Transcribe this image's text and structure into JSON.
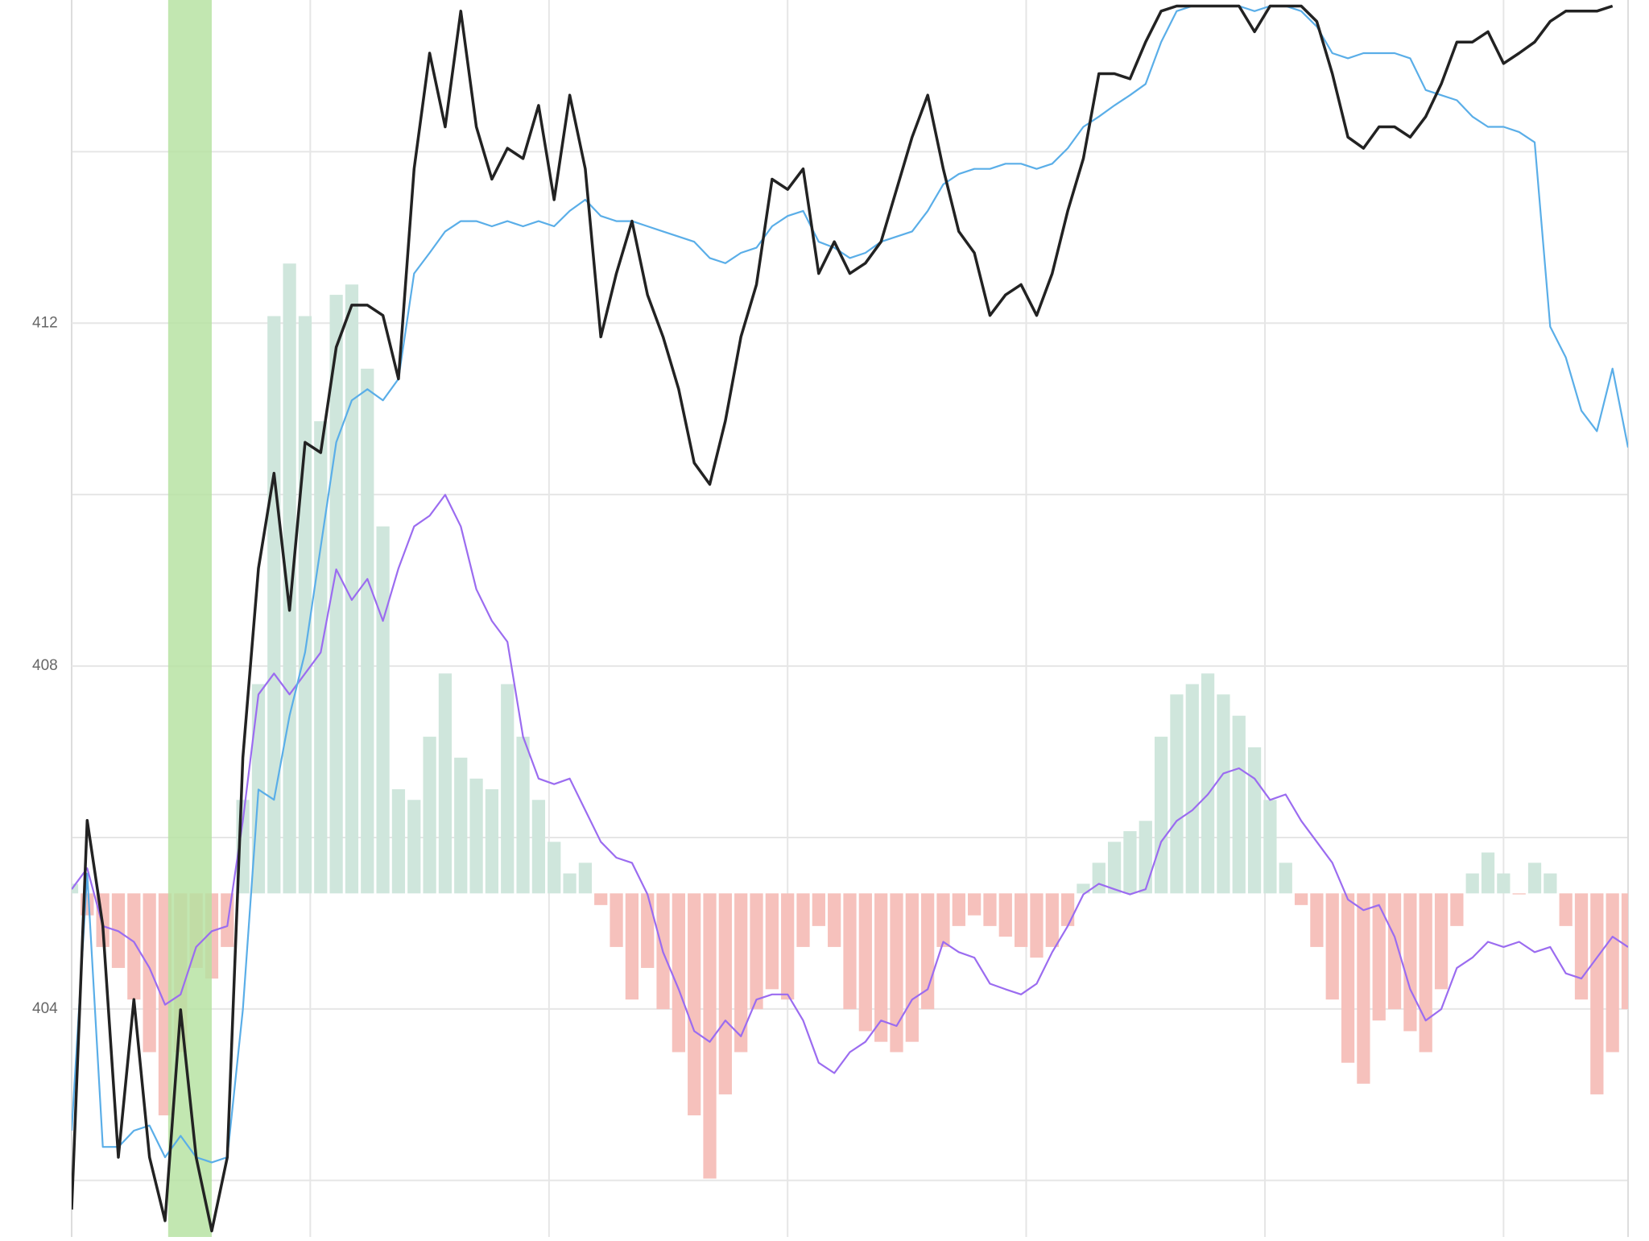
{
  "chart_data": {
    "type": "line",
    "xlim": [
      0,
      100
    ],
    "xticks": [
      15.33,
      30.67,
      46,
      61.33,
      76.67,
      92
    ],
    "ylim": [
      401.34,
      415.77
    ],
    "yticks": [
      404,
      408,
      412
    ],
    "minor_yticks": [
      402,
      406,
      410,
      414
    ],
    "y2lim": [
      -100,
      260
    ],
    "grid": true,
    "highlight": {
      "x": [
        6.2,
        9.0
      ],
      "color": "#b5e2a0"
    },
    "series": [
      {
        "type": "bar",
        "axis": "y2",
        "positive_color": "#cfe6dc",
        "negative_color": "#f6c1bc",
        "values": [
          2.8,
          -6.4,
          -15.6,
          -21.7,
          -30.9,
          -46.2,
          -64.6,
          -46.2,
          -21.7,
          -24.8,
          -15.6,
          27.2,
          60.9,
          168.0,
          183.3,
          168.0,
          137.4,
          174.2,
          177.2,
          152.7,
          106.8,
          30.3,
          27.2,
          45.6,
          64.0,
          39.5,
          33.4,
          30.3,
          60.9,
          45.6,
          27.2,
          15.0,
          5.8,
          8.9,
          -3.4,
          -15.6,
          -30.9,
          -21.7,
          -33.7,
          -46.2,
          -64.6,
          -83.0,
          -58.5,
          -46.2,
          -33.7,
          -27.9,
          -30.9,
          -15.6,
          -9.5,
          -15.6,
          -33.7,
          -40.1,
          -43.2,
          -46.2,
          -43.2,
          -33.7,
          -15.6,
          -9.5,
          -6.4,
          -9.5,
          -12.6,
          -15.6,
          -18.7,
          -15.6,
          -9.5,
          2.8,
          8.9,
          15.0,
          18.1,
          21.1,
          45.6,
          57.9,
          60.9,
          64.0,
          57.9,
          51.7,
          42.5,
          27.2,
          8.9,
          -3.4,
          -15.6,
          -30.9,
          -49.3,
          -55.4,
          -37.0,
          -33.7,
          -40.1,
          -46.2,
          -27.9,
          -9.5,
          5.8,
          11.9,
          5.8,
          -0.3,
          8.9,
          5.8,
          -9.5,
          -30.9,
          -58.5,
          -46.2,
          -33.7
        ]
      },
      {
        "type": "line",
        "axis": "y2",
        "color": "#9b6cf0",
        "values": [
          1.2,
          7.3,
          -9.5,
          -11.0,
          -14.1,
          -21.7,
          -32.4,
          -29.4,
          -15.6,
          -11.0,
          -9.5,
          21.1,
          57.9,
          64.0,
          57.9,
          64.0,
          70.1,
          94.3,
          85.4,
          91.5,
          79.3,
          94.6,
          106.8,
          109.9,
          116.0,
          106.8,
          88.5,
          79.3,
          73.2,
          45.6,
          33.4,
          31.8,
          33.4,
          24.2,
          15.0,
          10.4,
          8.9,
          -0.3,
          -17.1,
          -27.9,
          -40.1,
          -43.2,
          -37.0,
          -41.6,
          -30.9,
          -29.4,
          -29.4,
          -37.0,
          -49.3,
          -52.3,
          -46.2,
          -43.2,
          -37.0,
          -38.6,
          -30.9,
          -27.9,
          -14.1,
          -17.1,
          -18.7,
          -26.3,
          -27.9,
          -29.4,
          -26.3,
          -17.1,
          -9.5,
          -0.3,
          2.8,
          1.2,
          -0.3,
          1.2,
          15.0,
          21.1,
          24.2,
          28.8,
          34.9,
          36.4,
          33.4,
          27.2,
          28.8,
          21.1,
          15.0,
          8.9,
          -1.8,
          -4.9,
          -3.4,
          -12.6,
          -27.9,
          -37.0,
          -33.7,
          -21.7,
          -18.7,
          -14.1,
          -15.6,
          -14.1,
          -17.1,
          -15.6,
          -23.3,
          -24.8,
          -18.7,
          -12.6,
          -15.6
        ]
      },
      {
        "type": "line",
        "color": "#5aaee8",
        "values": [
          402.58,
          405.58,
          402.39,
          402.39,
          402.58,
          402.64,
          402.27,
          402.52,
          402.27,
          402.21,
          402.27,
          403.99,
          406.56,
          406.44,
          407.42,
          408.16,
          409.39,
          410.61,
          411.1,
          411.23,
          411.1,
          411.35,
          412.58,
          412.82,
          413.07,
          413.19,
          413.19,
          413.13,
          413.19,
          413.13,
          413.19,
          413.13,
          413.31,
          413.44,
          413.25,
          413.19,
          413.19,
          413.13,
          413.07,
          413.01,
          412.95,
          412.76,
          412.7,
          412.82,
          412.88,
          413.13,
          413.25,
          413.31,
          412.95,
          412.88,
          412.76,
          412.82,
          412.95,
          413.01,
          413.07,
          413.31,
          413.62,
          413.74,
          413.8,
          413.8,
          413.86,
          413.86,
          413.8,
          413.86,
          414.04,
          414.29,
          414.41,
          414.54,
          414.66,
          414.79,
          415.28,
          415.64,
          415.7,
          415.7,
          415.7,
          415.7,
          415.64,
          415.7,
          415.7,
          415.64,
          415.46,
          415.15,
          415.09,
          415.15,
          415.15,
          415.15,
          415.09,
          414.72,
          414.66,
          414.6,
          414.41,
          414.29,
          414.29,
          414.23,
          414.11,
          411.96,
          411.6,
          410.98,
          410.74,
          411.47,
          410.55
        ]
      },
      {
        "type": "line",
        "color": "#222222",
        "values": [
          401.66,
          406.2,
          404.97,
          402.27,
          404.11,
          402.27,
          401.53,
          403.99,
          402.27,
          401.41,
          402.27,
          406.93,
          409.14,
          410.25,
          408.65,
          410.61,
          410.49,
          411.72,
          412.21,
          412.21,
          412.09,
          411.35,
          413.8,
          415.15,
          414.29,
          415.64,
          414.29,
          413.68,
          414.04,
          413.92,
          414.54,
          413.44,
          414.66,
          413.8,
          411.84,
          412.58,
          413.19,
          412.33,
          411.84,
          411.23,
          410.37,
          410.12,
          410.86,
          411.84,
          412.45,
          413.68,
          413.56,
          413.8,
          412.58,
          412.95,
          412.58,
          412.7,
          412.95,
          413.56,
          414.17,
          414.66,
          413.8,
          413.07,
          412.82,
          412.09,
          412.33,
          412.45,
          412.09,
          412.58,
          413.31,
          413.92,
          414.91,
          414.91,
          414.85,
          415.28,
          415.64,
          415.7,
          415.7,
          415.7,
          415.7,
          415.7,
          415.4,
          415.7,
          415.7,
          415.7,
          415.52,
          414.91,
          414.17,
          414.04,
          414.29,
          414.29,
          414.17,
          414.41,
          414.79,
          415.28,
          415.28,
          415.4,
          415.03,
          415.15,
          415.28,
          415.52,
          415.64,
          415.64,
          415.64,
          415.7,
          null
        ]
      }
    ]
  }
}
